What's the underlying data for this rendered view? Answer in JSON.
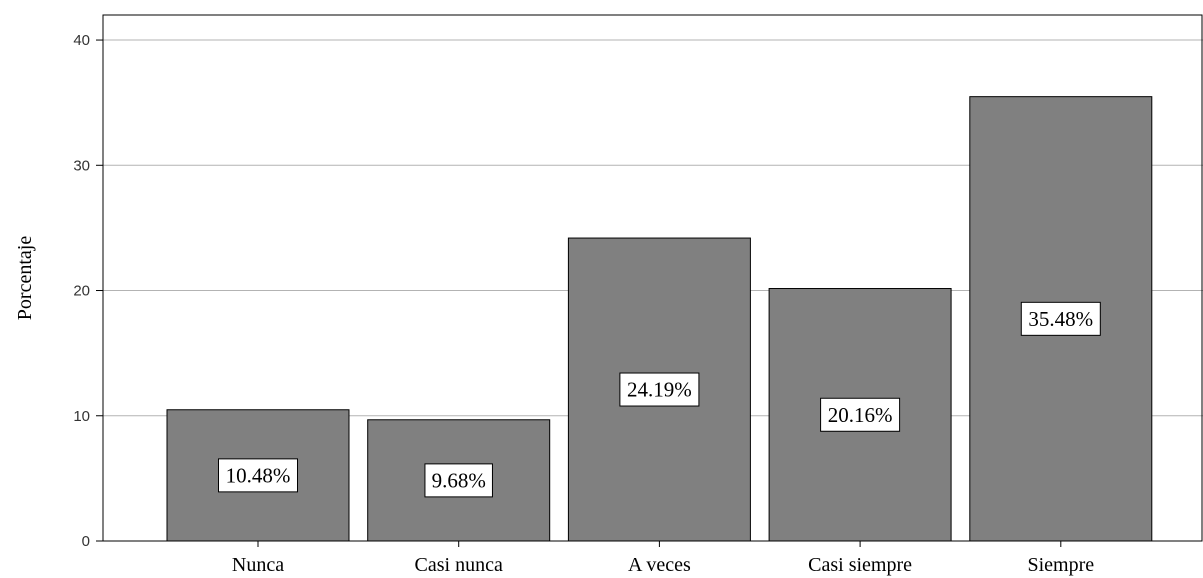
{
  "chart_data": {
    "type": "bar",
    "title": "",
    "xlabel": "",
    "ylabel": "Porcentaje",
    "categories": [
      "Nunca",
      "Casi nunca",
      "A veces",
      "Casi siempre",
      "Siempre"
    ],
    "values": [
      10.48,
      9.68,
      24.19,
      20.16,
      35.48
    ],
    "data_labels": [
      "10.48%",
      "9.68%",
      "24.19%",
      "20.16%",
      "35.48%"
    ],
    "ylim": [
      0,
      42
    ],
    "yticks": [
      "0",
      "10",
      "20",
      "30",
      "40"
    ],
    "grid": "horizontal",
    "legend": "none",
    "colors": {
      "bar_fill": "#808080",
      "bar_stroke": "#000000",
      "grid": "#b3b3b3",
      "frame": "#000000",
      "label_box": "#ffffff"
    }
  }
}
